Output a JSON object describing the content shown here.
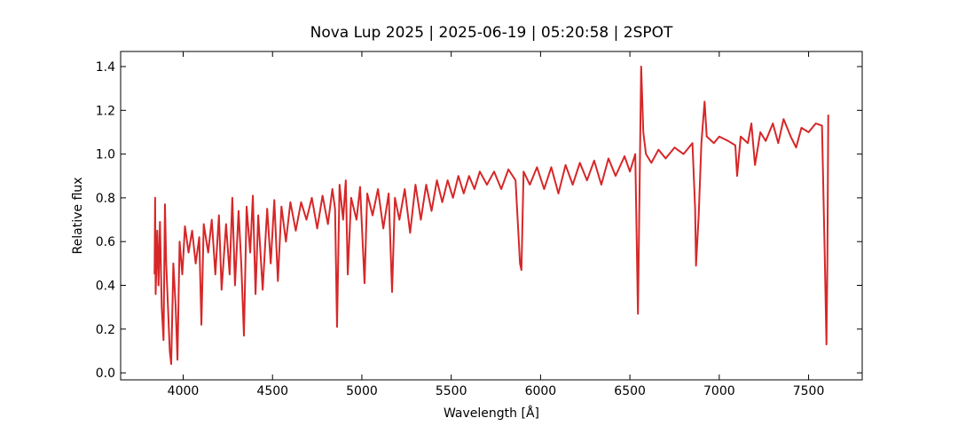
{
  "chart_data": {
    "type": "line",
    "title": "Nova Lup 2025 | 2025-06-19 | 05:20:58 | 2SPOT",
    "x_label": "Wavelength [Å]",
    "y_label": "Relative flux",
    "color": "#d62728",
    "xlim": [
      3650,
      7800
    ],
    "ylim": [
      -0.032,
      1.469
    ],
    "xticks": [
      4000,
      4500,
      5000,
      5500,
      6000,
      6500,
      7000,
      7500
    ],
    "yticks": [
      {
        "value": 0,
        "label": "0.0"
      },
      0.2,
      0.4,
      0.6,
      0.8,
      {
        "value": 1,
        "label": "1.0"
      },
      1.2,
      1.4
    ],
    "x": [
      3840,
      3843,
      3846,
      3855,
      3862,
      3870,
      3880,
      3890,
      3898,
      3905,
      3915,
      3925,
      3933,
      3945,
      3958,
      3968,
      3980,
      3995,
      4010,
      4030,
      4050,
      4070,
      4090,
      4102,
      4115,
      4140,
      4160,
      4180,
      4200,
      4215,
      4240,
      4260,
      4275,
      4290,
      4310,
      4325,
      4340,
      4355,
      4375,
      4390,
      4405,
      4420,
      4445,
      4470,
      4490,
      4510,
      4530,
      4550,
      4575,
      4600,
      4630,
      4660,
      4690,
      4720,
      4750,
      4780,
      4810,
      4835,
      4850,
      4861,
      4875,
      4895,
      4910,
      4921,
      4940,
      4970,
      4990,
      5015,
      5030,
      5060,
      5090,
      5120,
      5150,
      5169,
      5185,
      5210,
      5240,
      5270,
      5300,
      5330,
      5360,
      5390,
      5420,
      5450,
      5480,
      5510,
      5540,
      5570,
      5600,
      5630,
      5660,
      5700,
      5740,
      5780,
      5820,
      5860,
      5885,
      5893,
      5905,
      5940,
      5980,
      6020,
      6060,
      6100,
      6140,
      6180,
      6220,
      6260,
      6300,
      6340,
      6380,
      6420,
      6470,
      6500,
      6530,
      6545,
      6555,
      6563,
      6575,
      6590,
      6620,
      6660,
      6700,
      6750,
      6800,
      6850,
      6865,
      6870,
      6885,
      6900,
      6918,
      6930,
      6970,
      7000,
      7050,
      7090,
      7100,
      7120,
      7160,
      7180,
      7200,
      7230,
      7260,
      7300,
      7330,
      7360,
      7400,
      7430,
      7460,
      7500,
      7540,
      7575,
      7590,
      7600,
      7605,
      7610
    ],
    "values": [
      0.45,
      0.8,
      0.36,
      0.65,
      0.4,
      0.69,
      0.3,
      0.15,
      0.77,
      0.5,
      0.3,
      0.1,
      0.04,
      0.5,
      0.3,
      0.06,
      0.6,
      0.45,
      0.67,
      0.55,
      0.65,
      0.5,
      0.62,
      0.22,
      0.68,
      0.55,
      0.7,
      0.45,
      0.72,
      0.38,
      0.68,
      0.45,
      0.8,
      0.4,
      0.74,
      0.5,
      0.17,
      0.76,
      0.55,
      0.81,
      0.36,
      0.72,
      0.38,
      0.75,
      0.5,
      0.79,
      0.42,
      0.76,
      0.6,
      0.78,
      0.65,
      0.78,
      0.7,
      0.8,
      0.66,
      0.81,
      0.68,
      0.84,
      0.75,
      0.21,
      0.86,
      0.7,
      0.88,
      0.45,
      0.8,
      0.7,
      0.85,
      0.41,
      0.82,
      0.72,
      0.84,
      0.66,
      0.82,
      0.37,
      0.8,
      0.7,
      0.84,
      0.64,
      0.86,
      0.7,
      0.86,
      0.74,
      0.88,
      0.78,
      0.88,
      0.8,
      0.9,
      0.82,
      0.9,
      0.84,
      0.92,
      0.86,
      0.92,
      0.84,
      0.93,
      0.88,
      0.5,
      0.47,
      0.92,
      0.86,
      0.94,
      0.84,
      0.94,
      0.82,
      0.95,
      0.86,
      0.96,
      0.88,
      0.97,
      0.86,
      0.98,
      0.9,
      0.99,
      0.92,
      1.0,
      0.27,
      0.9,
      1.4,
      1.1,
      1.0,
      0.96,
      1.02,
      0.98,
      1.03,
      1.0,
      1.05,
      0.75,
      0.49,
      0.72,
      1.05,
      1.24,
      1.08,
      1.05,
      1.08,
      1.06,
      1.04,
      0.9,
      1.08,
      1.05,
      1.14,
      0.95,
      1.1,
      1.06,
      1.14,
      1.05,
      1.16,
      1.08,
      1.03,
      1.12,
      1.1,
      1.14,
      1.13,
      0.55,
      0.13,
      0.5,
      1.18
    ]
  }
}
